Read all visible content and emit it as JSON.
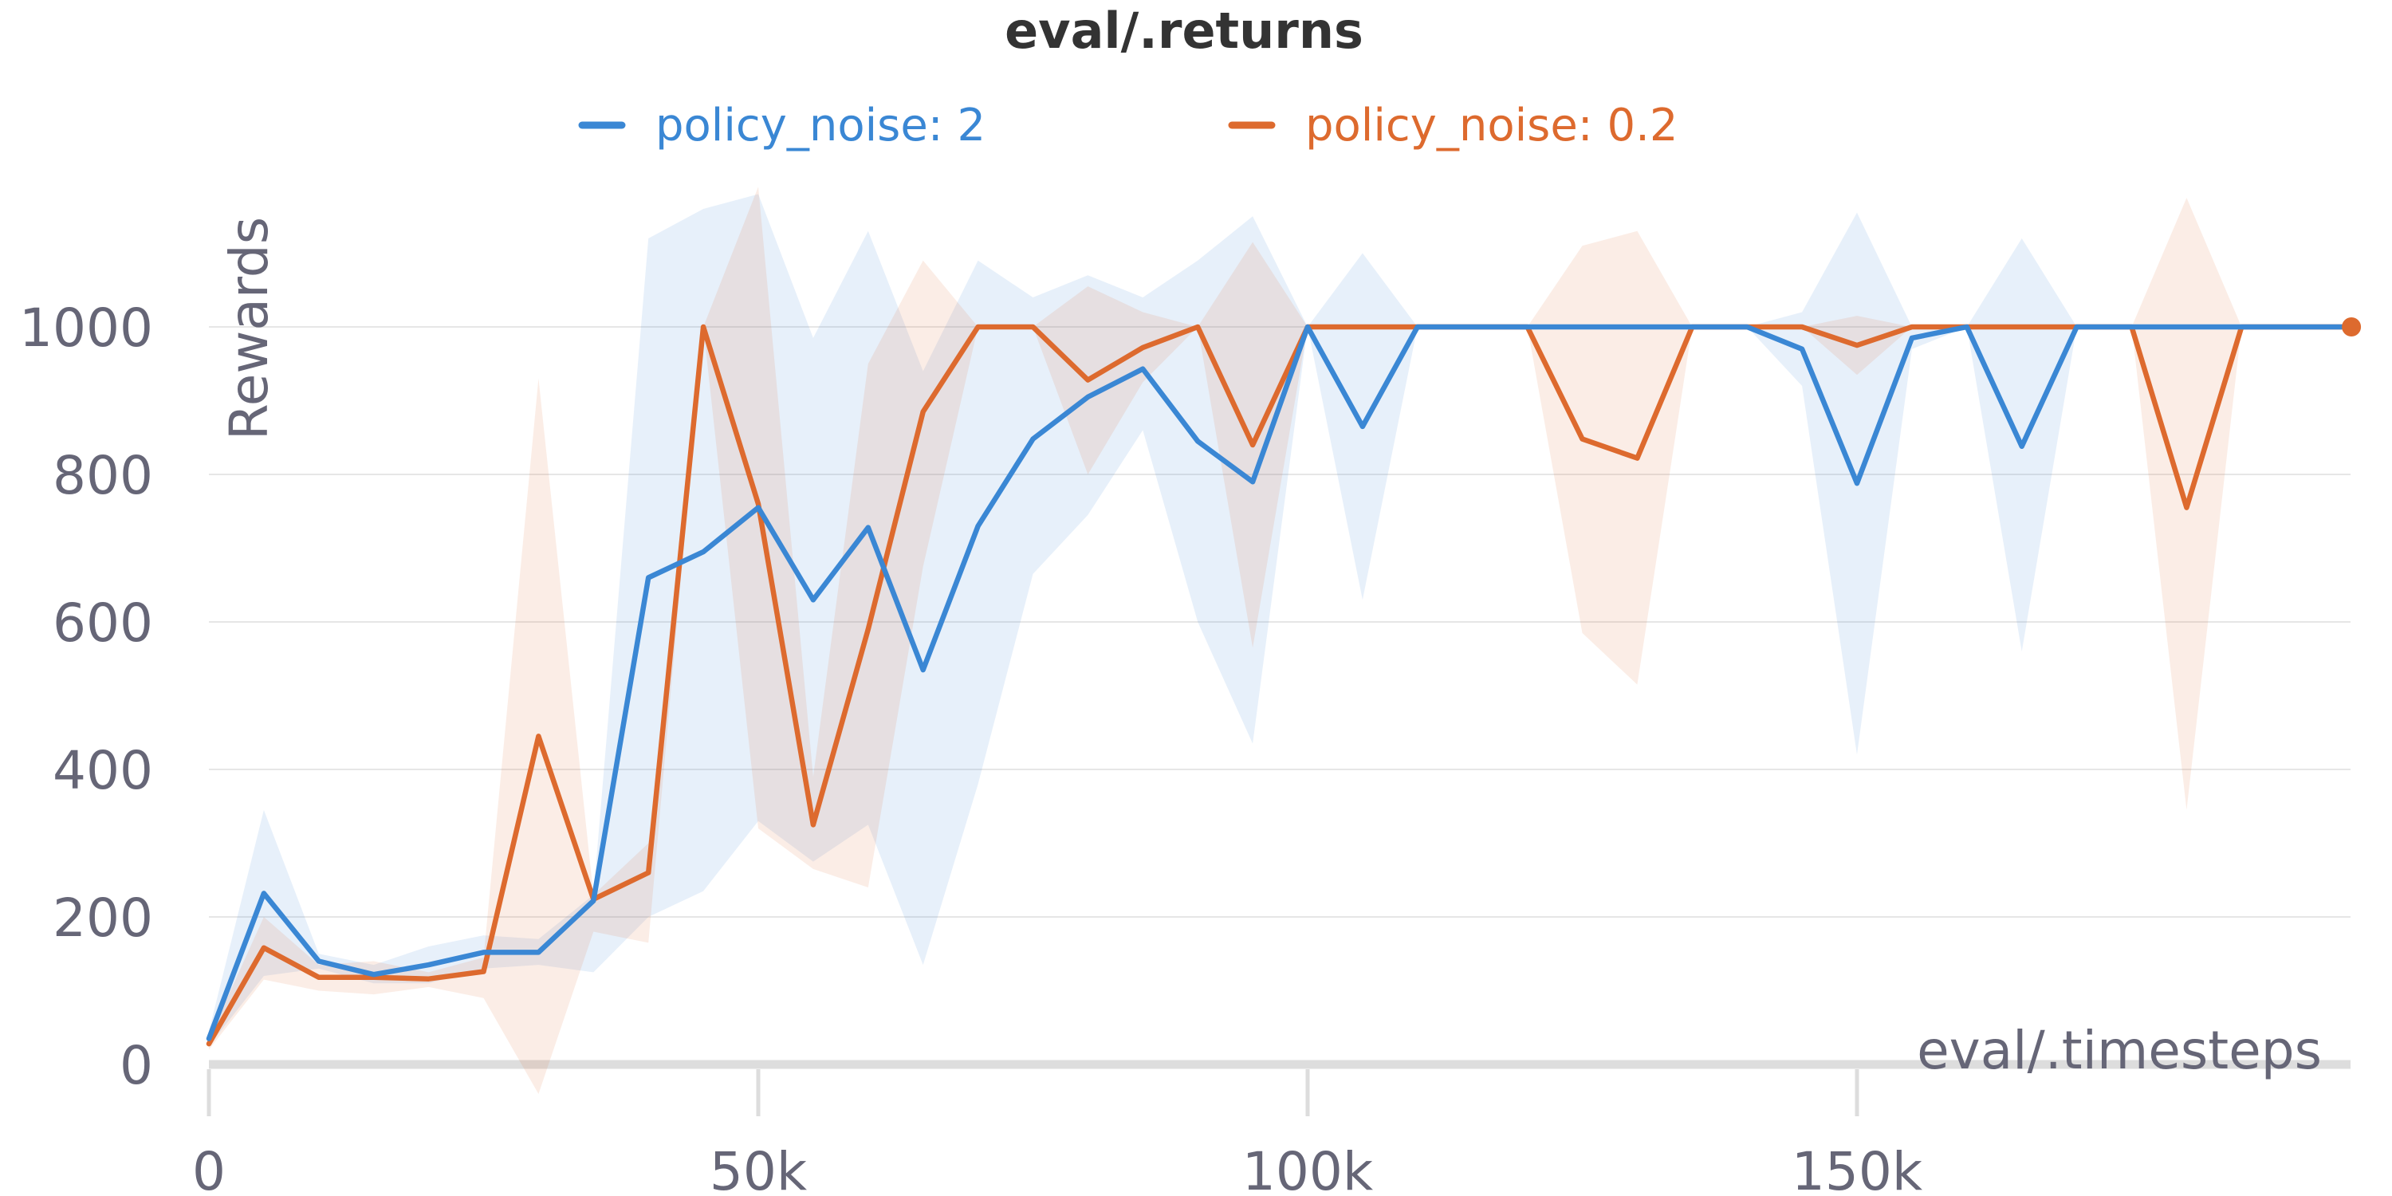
{
  "chart_data": {
    "type": "line",
    "title": "eval/.returns",
    "xlabel": "eval/.timesteps",
    "ylabel": "Rewards",
    "xlim": [
      0,
      195000
    ],
    "ylim": [
      -50,
      1180
    ],
    "x_ticks": [
      0,
      50000,
      100000,
      150000
    ],
    "x_tick_labels": [
      "0",
      "50k",
      "100k",
      "150k"
    ],
    "y_ticks": [
      0,
      200,
      400,
      600,
      800,
      1000
    ],
    "y_tick_labels": [
      "0",
      "200",
      "400",
      "600",
      "800",
      "1000"
    ],
    "grid": true,
    "legend": "top",
    "x": [
      0,
      5000,
      10000,
      15000,
      20000,
      25000,
      30000,
      35000,
      40000,
      45000,
      50000,
      55000,
      60000,
      65000,
      70000,
      75000,
      80000,
      85000,
      90000,
      95000,
      100000,
      105000,
      110000,
      115000,
      120000,
      125000,
      130000,
      135000,
      140000,
      145000,
      150000,
      155000,
      160000,
      165000,
      170000,
      175000,
      180000,
      185000,
      190000,
      195000
    ],
    "series": [
      {
        "name": "policy_noise: 2",
        "color": "#3a87d4",
        "band_color": "#e5eff9",
        "values": [
          35,
          232,
          140,
          122,
          135,
          152,
          152,
          222,
          660,
          695,
          755,
          630,
          728,
          535,
          730,
          848,
          905,
          943,
          845,
          790,
          1000,
          865,
          1000,
          1000,
          1000,
          1000,
          1000,
          1000,
          1000,
          970,
          788,
          985,
          1000,
          838,
          1000,
          1000,
          1000,
          1000,
          1000,
          1000
        ],
        "upper": [
          45,
          345,
          150,
          135,
          160,
          175,
          170,
          230,
          1120,
          1160,
          1180,
          985,
          1130,
          940,
          1090,
          1040,
          1070,
          1040,
          1090,
          1150,
          1000,
          1100,
          1000,
          1000,
          1000,
          1000,
          1000,
          1000,
          1000,
          1020,
          1155,
          1000,
          1000,
          1120,
          1000,
          1000,
          1000,
          1000,
          1000,
          1000
        ],
        "lower": [
          25,
          120,
          130,
          110,
          110,
          130,
          135,
          125,
          200,
          235,
          330,
          275,
          325,
          135,
          380,
          665,
          745,
          860,
          600,
          435,
          1000,
          630,
          1000,
          1000,
          1000,
          1000,
          1000,
          1000,
          1000,
          920,
          420,
          970,
          1000,
          560,
          1000,
          1000,
          1000,
          1000,
          1000,
          1000
        ]
      },
      {
        "name": "policy_noise: 0.2",
        "color": "#dd6a2e",
        "band_color": "#fcebe2",
        "values": [
          28,
          158,
          118,
          118,
          116,
          126,
          445,
          224,
          260,
          1000,
          760,
          325,
          590,
          885,
          1000,
          1000,
          928,
          972,
          1000,
          840,
          1000,
          1000,
          1000,
          1000,
          1000,
          848,
          822,
          1000,
          1000,
          1000,
          975,
          1000,
          1000,
          1000,
          1000,
          1000,
          755,
          1000,
          1000,
          1000
        ],
        "upper": [
          35,
          200,
          135,
          140,
          125,
          145,
          930,
          230,
          300,
          1000,
          1190,
          390,
          950,
          1090,
          1000,
          1000,
          1055,
          1020,
          1000,
          1115,
          1000,
          1000,
          1000,
          1000,
          1000,
          1110,
          1130,
          1000,
          1000,
          1000,
          1015,
          1000,
          1000,
          1000,
          1000,
          1000,
          1175,
          1000,
          1000,
          1000
        ],
        "lower": [
          20,
          115,
          100,
          95,
          105,
          90,
          -40,
          180,
          165,
          1000,
          320,
          265,
          240,
          675,
          1000,
          1000,
          800,
          925,
          1000,
          565,
          1000,
          1000,
          1000,
          1000,
          1000,
          585,
          515,
          1000,
          1000,
          1000,
          935,
          1000,
          1000,
          1000,
          1000,
          1000,
          345,
          1000,
          1000,
          1000
        ]
      }
    ]
  }
}
